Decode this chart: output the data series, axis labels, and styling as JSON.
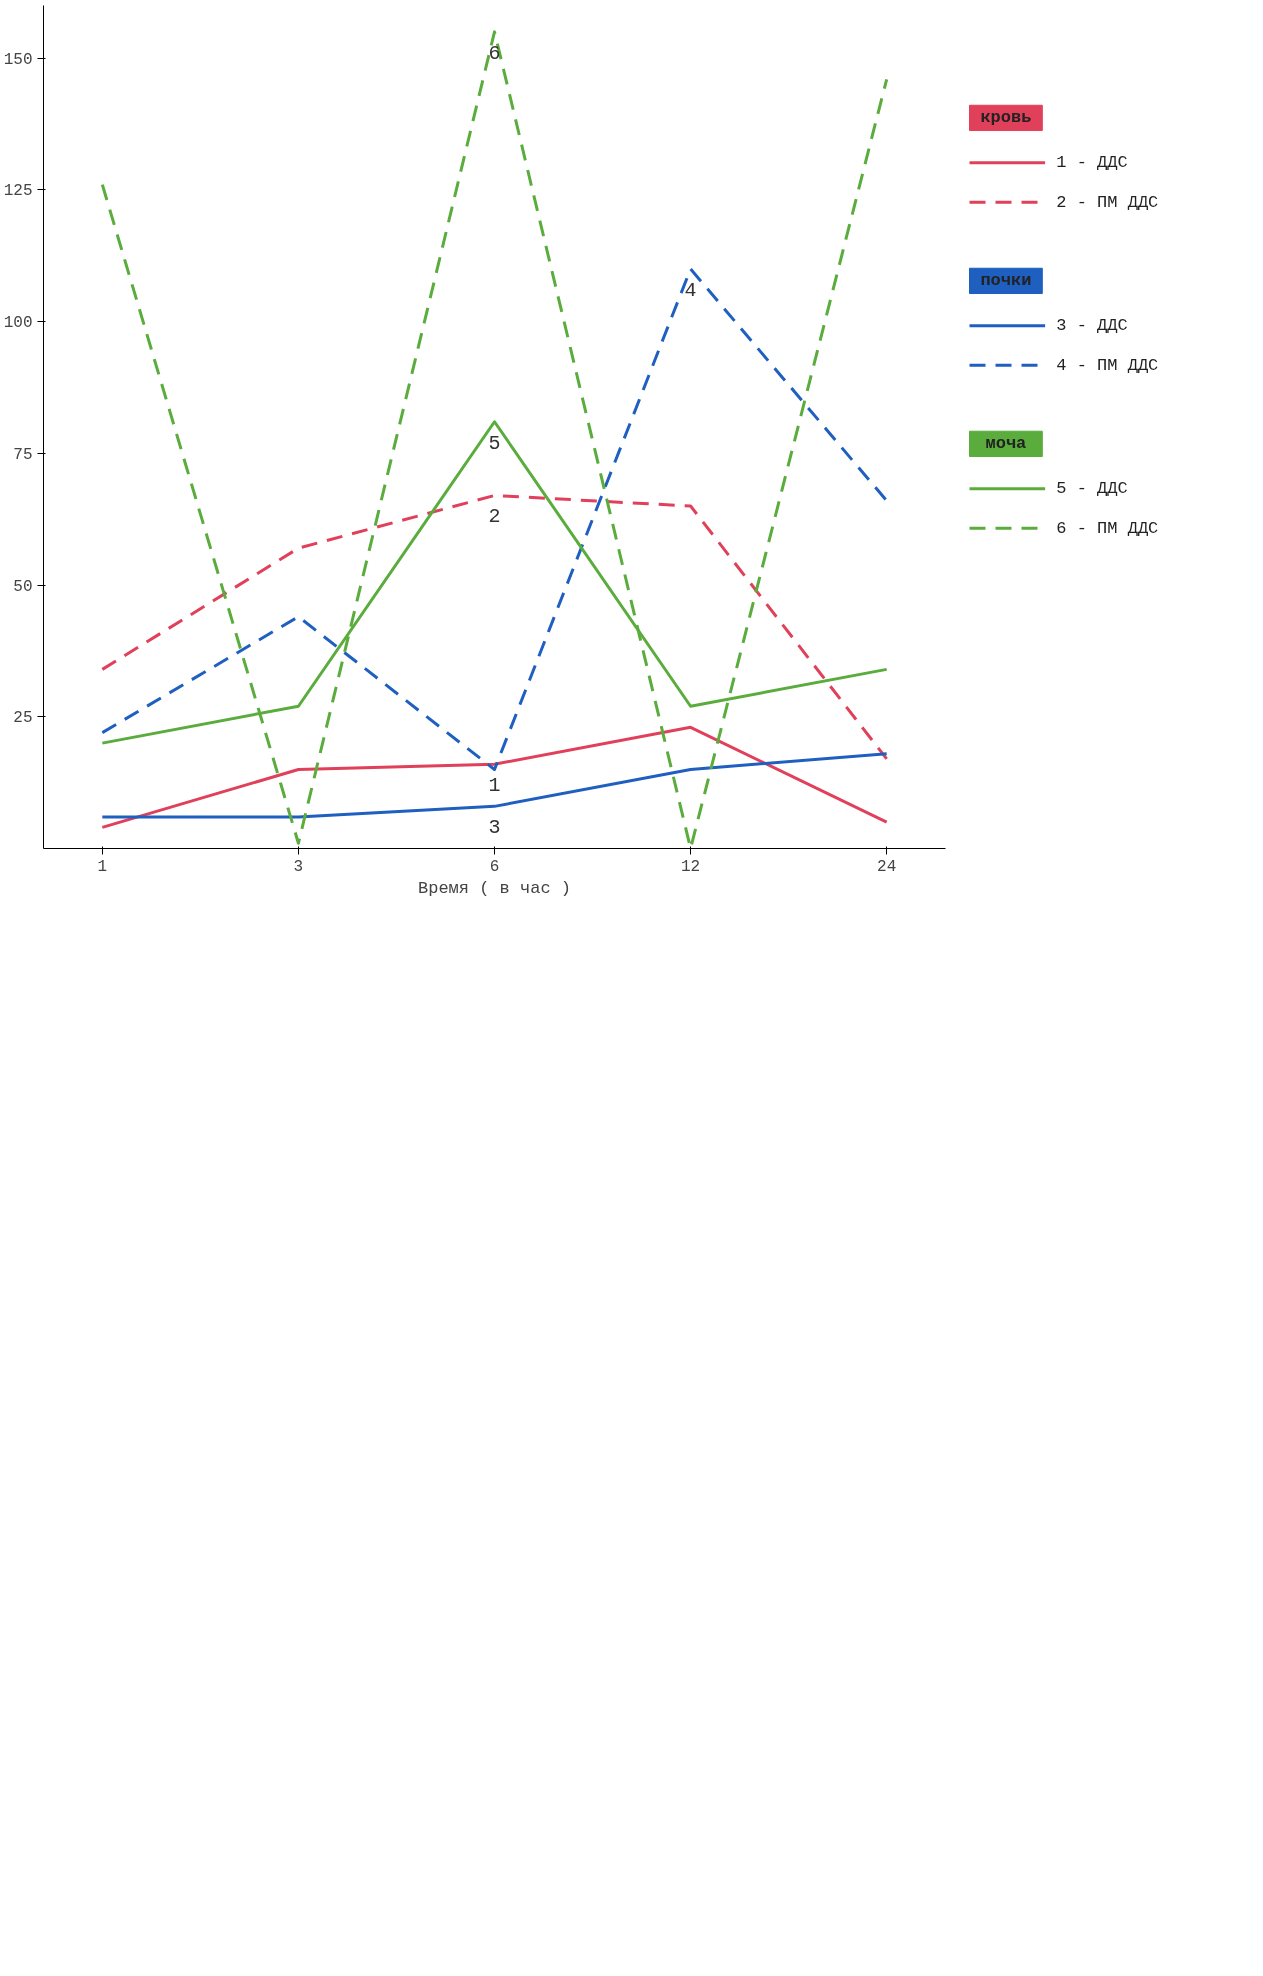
{
  "chart_data": {
    "type": "line",
    "xlabel": "Время ( в час )",
    "categories": [
      "1",
      "3",
      "6",
      "12",
      "24"
    ],
    "ylim": [
      0,
      160
    ],
    "yticks": [
      25,
      50,
      75,
      100,
      125,
      150
    ],
    "grid": false,
    "legend": "right",
    "marker": "none",
    "series": [
      {
        "name": "1 - ДДС",
        "color": "#e0405a",
        "line_style": "solid",
        "values": [
          4,
          15,
          16,
          23,
          5
        ]
      },
      {
        "name": "2 - ПМ ДДС",
        "color": "#e0405a",
        "line_style": "dashed",
        "values": [
          34,
          57,
          67,
          65,
          17
        ]
      },
      {
        "name": "3 - ДДС",
        "color": "#1f5fc0",
        "line_style": "solid",
        "values": [
          6,
          6,
          8,
          15,
          18
        ]
      },
      {
        "name": "4 - ПМ ДДС",
        "color": "#1f5fc0",
        "line_style": "dashed",
        "values": [
          22,
          44,
          15,
          110,
          66
        ]
      },
      {
        "name": "5 - ДДС",
        "color": "#5aac3c",
        "line_style": "solid",
        "values": [
          20,
          27,
          81,
          27,
          34
        ]
      },
      {
        "name": "6 - ПМ ДДС",
        "color": "#5aac3c",
        "line_style": "dashed",
        "values": [
          126,
          1,
          155,
          0,
          146
        ]
      }
    ],
    "annotations": [
      "кровь",
      "почки",
      "моча",
      {
        "text": "6",
        "x": "6",
        "y": 155
      },
      {
        "text": "5",
        "x": "6",
        "y": 81
      },
      {
        "text": "2",
        "x": "6",
        "y": 67
      },
      {
        "text": "4",
        "x": "12",
        "y": 110
      },
      {
        "text": "1",
        "x": "6",
        "y": 16
      },
      {
        "text": "3",
        "x": "6",
        "y": 8
      }
    ]
  }
}
